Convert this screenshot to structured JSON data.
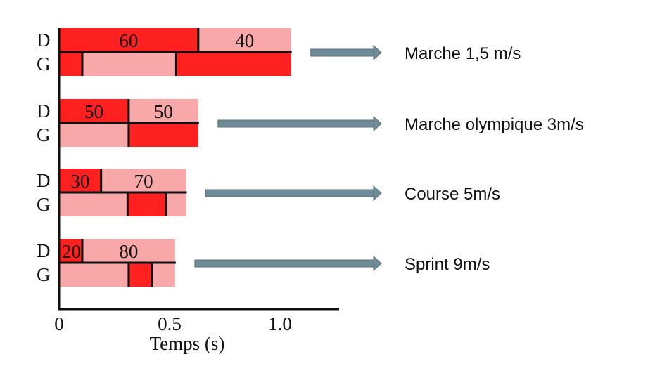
{
  "chart_data": {
    "type": "bar",
    "xlabel": "Temps (s)",
    "xlim": [
      0,
      1.25
    ],
    "xticks": [
      "0",
      "0.5",
      "1.0"
    ],
    "xtick_values": [
      0,
      0.5,
      1.0
    ],
    "foot_labels": {
      "right": "D",
      "left": "G"
    },
    "colors": {
      "stance": "#ff2020",
      "swing": "#f8a8a8",
      "line": "#111111",
      "arrow": "#6f8b96",
      "text": "#111111"
    },
    "gaits": [
      {
        "label": "Marche 1,5 m/s",
        "cycle_end": 1.05,
        "stance_pct": "60",
        "swing_pct": "40",
        "right_stance": [
          [
            0,
            0.63
          ]
        ],
        "left_stance": [
          [
            0,
            0.105
          ],
          [
            0.53,
            1.05
          ]
        ],
        "left_ticks": [
          0.105,
          0.53
        ]
      },
      {
        "label": "Marche olympique 3m/s",
        "cycle_end": 0.63,
        "stance_pct": "50",
        "swing_pct": "50",
        "right_stance": [
          [
            0,
            0.315
          ]
        ],
        "left_stance": [
          [
            0.315,
            0.63
          ]
        ],
        "left_ticks": [
          0.315
        ]
      },
      {
        "label": "Course 5m/s",
        "cycle_end": 0.575,
        "stance_pct": "30",
        "swing_pct": "70",
        "right_stance": [
          [
            0,
            0.19
          ]
        ],
        "left_stance": [
          [
            0.31,
            0.485
          ]
        ],
        "left_ticks": [
          0.31,
          0.485
        ]
      },
      {
        "label": "Sprint 9m/s",
        "cycle_end": 0.525,
        "stance_pct": "20",
        "swing_pct": "80",
        "right_stance": [
          [
            0,
            0.105
          ]
        ],
        "left_stance": [
          [
            0.315,
            0.42
          ]
        ],
        "left_ticks": [
          0.315,
          0.42
        ]
      }
    ]
  }
}
